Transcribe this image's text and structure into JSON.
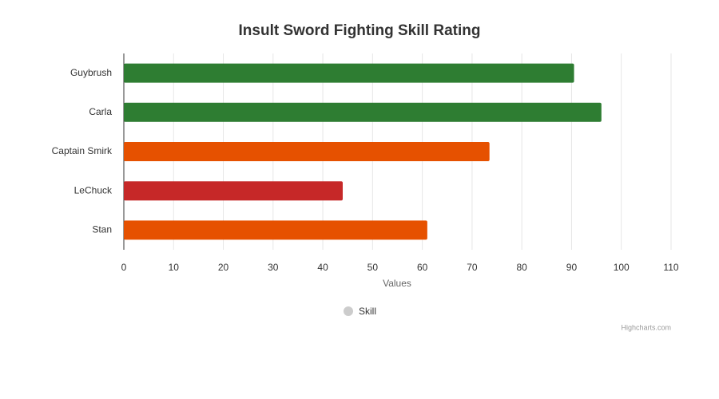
{
  "chart_data": {
    "type": "bar",
    "title": "Insult Sword Fighting Skill Rating",
    "categories": [
      "Guybrush",
      "Carla",
      "Captain Smirk",
      "LeChuck",
      "Stan"
    ],
    "series": [
      {
        "name": "Skill",
        "color": "#cccccc",
        "colors": [
          "#2e7d32",
          "#2e7d32",
          "#e65100",
          "#c62828",
          "#e65100"
        ],
        "values": [
          90.5,
          96,
          73.5,
          44,
          61
        ]
      }
    ],
    "x_label": "Values",
    "xlim": [
      0,
      110
    ],
    "xticks": [
      0,
      10,
      20,
      30,
      40,
      50,
      60,
      70,
      80,
      90,
      100,
      110
    ],
    "grid": true,
    "legend": "bottom",
    "credits": "Highcharts.com"
  }
}
